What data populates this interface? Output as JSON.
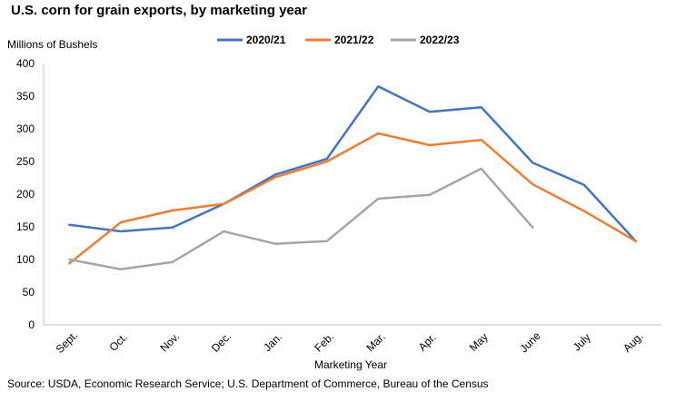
{
  "chart_data": {
    "type": "line",
    "title": "U.S. corn for grain exports, by marketing year",
    "ylabel": "Millions of Bushels",
    "xlabel": "Marketing Year",
    "ylim": [
      0,
      400
    ],
    "yticks": [
      0,
      50,
      100,
      150,
      200,
      250,
      300,
      350,
      400
    ],
    "categories": [
      "Sept.",
      "Oct.",
      "Nov.",
      "Dec.",
      "Jan.",
      "Feb.",
      "Mar.",
      "Apr.",
      "May",
      "June",
      "July",
      "Aug."
    ],
    "legend_position": "top",
    "grid": false,
    "series": [
      {
        "name": "2020/21",
        "color": "#4472C4",
        "values": [
          153,
          143,
          149,
          185,
          230,
          254,
          365,
          326,
          333,
          248,
          214,
          128
        ]
      },
      {
        "name": "2021/22",
        "color": "#ED7D31",
        "values": [
          94,
          157,
          175,
          185,
          226,
          250,
          293,
          275,
          283,
          215,
          174,
          128
        ]
      },
      {
        "name": "2022/23",
        "color": "#A5A5A5",
        "values": [
          100,
          85,
          96,
          143,
          124,
          128,
          193,
          199,
          239,
          149,
          null,
          null
        ]
      }
    ],
    "source": "Source: USDA, Economic Research Service; U.S. Department of Commerce, Bureau of the Census"
  }
}
